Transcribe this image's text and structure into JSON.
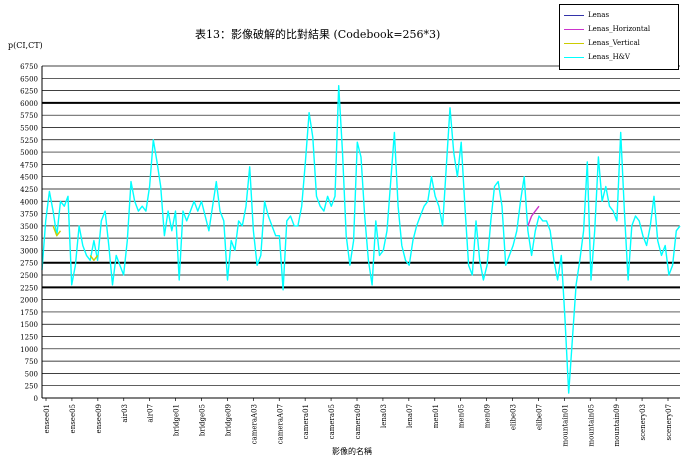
{
  "chart_data": {
    "type": "line",
    "title": "表13：影像破解的比對結果 (Codebook=256*3)",
    "ylabel": "p(CI,CT)",
    "xlabel": "影像的名稱",
    "ylim": [
      0,
      6750
    ],
    "yticks": [
      0,
      250,
      500,
      750,
      1000,
      1250,
      1500,
      1750,
      2000,
      2250,
      2500,
      2750,
      3000,
      3250,
      3500,
      3750,
      4000,
      4250,
      4500,
      4750,
      5000,
      5250,
      5500,
      5750,
      6000,
      6250,
      6500,
      6750
    ],
    "bold_gridlines": [
      2250,
      2750,
      6000
    ],
    "xtick_labels": [
      "ensee01",
      "ensee05",
      "ensee09",
      "air03",
      "air07",
      "bridge01",
      "bridge05",
      "bridge09",
      "cameraA03",
      "cameraA07",
      "camera01",
      "camera05",
      "camera09",
      "lena03",
      "lena07",
      "men01",
      "men05",
      "men09",
      "elibe03",
      "elibe07",
      "mountain01",
      "mountain05",
      "mountain09",
      "scenery03",
      "scenery07"
    ],
    "legend": {
      "position": "top-right",
      "entries": [
        "Lenas",
        "Lenas_Horizontal",
        "Lenas_Vertical",
        "Lenas_H&V"
      ]
    },
    "colors": {
      "Lenas": "#3333aa",
      "Lenas_Horizontal": "#cc33cc",
      "Lenas_Vertical": "#cccc00",
      "Lenas_H&V": "#00ffff"
    },
    "series": [
      {
        "name": "Lenas_H&V",
        "values": [
          2600,
          3600,
          4200,
          3800,
          3300,
          4000,
          3900,
          4100,
          2300,
          2700,
          3500,
          3100,
          2900,
          2800,
          3200,
          2800,
          3600,
          3800,
          3100,
          2300,
          2900,
          2700,
          2500,
          3200,
          4400,
          4000,
          3800,
          3900,
          3800,
          4300,
          5250,
          4800,
          4300,
          3300,
          3800,
          3400,
          3800,
          2400,
          3800,
          3600,
          3800,
          4000,
          3800,
          4000,
          3700,
          3400,
          3900,
          4400,
          3800,
          3600,
          2400,
          3200,
          3000,
          3600,
          3500,
          3900,
          4700,
          3400,
          2700,
          2900,
          4000,
          3700,
          3500,
          3300,
          3300,
          2200,
          3600,
          3700,
          3500,
          3500,
          3900,
          4800,
          5800,
          5300,
          4100,
          3900,
          3800,
          4100,
          3900,
          4100,
          6350,
          5000,
          3300,
          2700,
          3200,
          5200,
          4900,
          3700,
          2800,
          2300,
          3600,
          2900,
          3000,
          3400,
          4400,
          5400,
          3900,
          3100,
          2800,
          2700,
          3200,
          3500,
          3700,
          3900,
          4000,
          4500,
          4100,
          3900,
          3500,
          4700,
          5900,
          5000,
          4500,
          5200,
          3900,
          2700,
          2500,
          3600,
          2800,
          2400,
          2700,
          3600,
          4300,
          4400,
          3900,
          2700,
          2900,
          3100,
          3400,
          4000,
          4500,
          3400,
          2900,
          3400,
          3700,
          3600,
          3600,
          3400,
          2800,
          2400,
          2900,
          1600,
          100,
          1200,
          2300,
          2800,
          3400,
          4800,
          2400,
          3400,
          4900,
          4000,
          4300,
          3900,
          3800,
          3600,
          5400,
          3800,
          2400,
          3500,
          3700,
          3600,
          3300,
          3100,
          3500,
          4100,
          3200,
          2900,
          3100,
          2500,
          2700,
          3400,
          3500
        ]
      },
      {
        "name": "Lenas_Horizontal",
        "values": [
          null,
          null,
          null,
          null,
          null,
          null,
          null,
          null,
          null,
          null,
          null,
          null,
          null,
          null,
          null,
          null,
          null,
          null,
          null,
          null,
          null,
          null,
          null,
          null,
          null,
          null,
          null,
          null,
          null,
          null,
          null,
          null,
          null,
          null,
          null,
          null,
          null,
          null,
          null,
          null,
          null,
          null,
          null,
          null,
          null,
          null,
          null,
          null,
          null,
          null,
          null,
          null,
          null,
          null,
          null,
          null,
          null,
          null,
          null,
          null,
          null,
          null,
          null,
          null,
          null,
          null,
          null,
          null,
          null,
          null,
          null,
          null,
          null,
          null,
          null,
          null,
          null,
          null,
          null,
          null,
          null,
          null,
          null,
          null,
          null,
          null,
          null,
          null,
          null,
          null,
          null,
          null,
          null,
          null,
          null,
          null,
          null,
          null,
          null,
          null,
          null,
          null,
          null,
          null,
          null,
          null,
          null,
          null,
          null,
          null,
          null,
          null,
          null,
          null,
          null,
          null,
          null,
          null,
          null,
          null,
          null,
          null,
          null,
          null,
          null,
          null,
          null,
          null,
          null,
          null,
          null,
          3500,
          3700,
          3800,
          3900,
          null,
          null,
          null,
          null,
          null,
          null,
          null,
          null,
          null,
          null,
          null,
          null,
          null,
          null,
          null,
          null,
          null,
          null,
          null,
          null,
          null,
          null,
          null,
          null,
          null,
          null,
          null,
          null,
          null,
          null,
          null,
          null,
          null,
          null,
          null,
          null,
          null
        ]
      },
      {
        "name": "Lenas_Vertical",
        "values": [
          null,
          null,
          null,
          3500,
          3300,
          3400,
          null,
          null,
          null,
          null,
          null,
          null,
          null,
          2900,
          2800,
          2900,
          null,
          null,
          null,
          null,
          null,
          null,
          null,
          null,
          null,
          null,
          null,
          null,
          null,
          null,
          null,
          null,
          null,
          null,
          null,
          null,
          null,
          null,
          null,
          null,
          null,
          null,
          null,
          null,
          null,
          null,
          null,
          null,
          null,
          null,
          null,
          null,
          null,
          null,
          null,
          null,
          null,
          null,
          null,
          null,
          null,
          null,
          null,
          null,
          null,
          null,
          null,
          null,
          null,
          null,
          null,
          null,
          null,
          null,
          null,
          null,
          null,
          null,
          null,
          null,
          null,
          null,
          null,
          null,
          null,
          null,
          null,
          null,
          null,
          null,
          null,
          null,
          null,
          null,
          null,
          null,
          null,
          null,
          null,
          null,
          null,
          null,
          null,
          null,
          null,
          null,
          null,
          null,
          null,
          null,
          null,
          null,
          null,
          null,
          null,
          null,
          null,
          null,
          null,
          null,
          null,
          null,
          null,
          null,
          null,
          null,
          null,
          null,
          null,
          null,
          null,
          null,
          null,
          null,
          null,
          null,
          null,
          null,
          null,
          null,
          null,
          null,
          null,
          null,
          null,
          null,
          null,
          null,
          null,
          null,
          null,
          null,
          null,
          null,
          null,
          null,
          null,
          null,
          null,
          null,
          null,
          null,
          null,
          null,
          null,
          null,
          null,
          null,
          null,
          null
        ]
      }
    ]
  }
}
